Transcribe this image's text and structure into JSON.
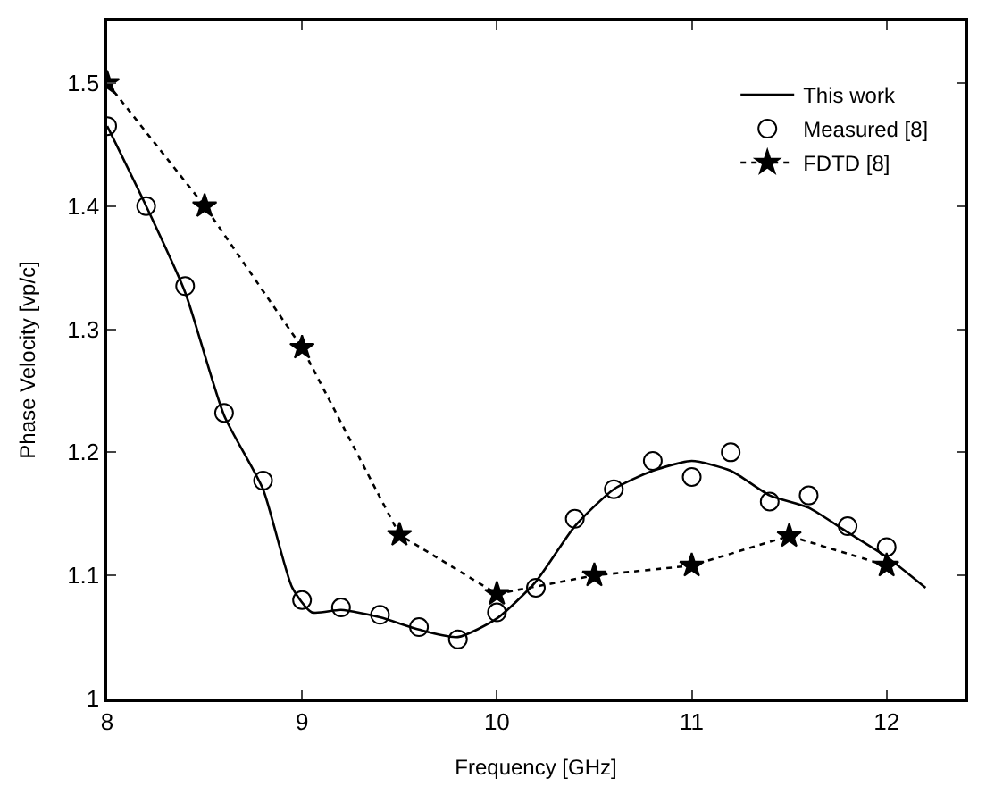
{
  "chart_data": {
    "type": "line",
    "xlabel": "Frequency [GHz]",
    "ylabel": "Phase Velocity [vp/c]",
    "xlim": [
      8,
      12.4
    ],
    "ylim": [
      1,
      1.55
    ],
    "xticks": [
      8,
      9,
      10,
      11,
      12
    ],
    "yticks": [
      1,
      1.1,
      1.2,
      1.3,
      1.4,
      1.5
    ],
    "legend": "top right",
    "series": [
      {
        "name": "This work",
        "color": "#000000",
        "marker": "none",
        "line_style": "solid",
        "x": [
          8,
          8.2,
          8.4,
          8.6,
          8.8,
          8.95,
          9.05,
          9.2,
          9.4,
          9.6,
          9.8,
          10,
          10.2,
          10.4,
          10.6,
          10.8,
          11,
          11.2,
          11.4,
          11.6,
          11.8,
          12,
          12.2
        ],
        "values": [
          1.465,
          1.4,
          1.33,
          1.23,
          1.17,
          1.09,
          1.07,
          1.072,
          1.066,
          1.056,
          1.05,
          1.065,
          1.095,
          1.14,
          1.17,
          1.185,
          1.193,
          1.185,
          1.165,
          1.155,
          1.135,
          1.115,
          1.09
        ]
      },
      {
        "name": "Measured [8]",
        "color": "#000000",
        "type": "scatter",
        "marker": "circle",
        "x": [
          8,
          8.2,
          8.4,
          8.6,
          8.8,
          9,
          9.2,
          9.4,
          9.6,
          9.8,
          10,
          10.2,
          10.4,
          10.6,
          10.8,
          11,
          11.2,
          11.4,
          11.6,
          11.8,
          12
        ],
        "values": [
          1.465,
          1.4,
          1.335,
          1.232,
          1.177,
          1.08,
          1.074,
          1.068,
          1.058,
          1.048,
          1.07,
          1.09,
          1.146,
          1.17,
          1.193,
          1.18,
          1.2,
          1.16,
          1.165,
          1.14,
          1.123
        ]
      },
      {
        "name": "FDTD [8]",
        "color": "#000000",
        "marker": "star",
        "line_style": "dotted",
        "x": [
          8,
          8.5,
          9,
          9.5,
          10,
          10.5,
          11,
          11.5,
          12
        ],
        "values": [
          1.5,
          1.4,
          1.285,
          1.133,
          1.085,
          1.1,
          1.108,
          1.132,
          1.108
        ]
      }
    ]
  }
}
